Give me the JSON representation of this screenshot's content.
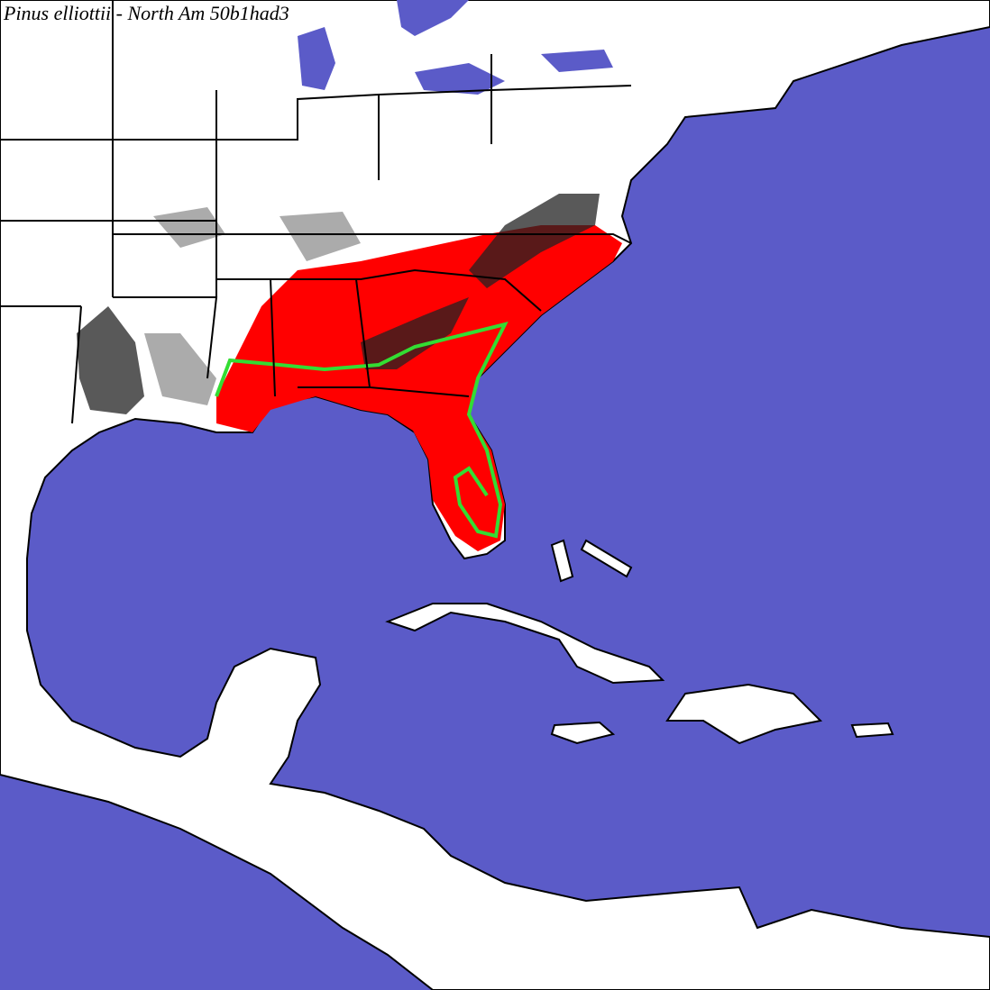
{
  "title": "Pinus elliottii - North Am 50b1had3"
}
